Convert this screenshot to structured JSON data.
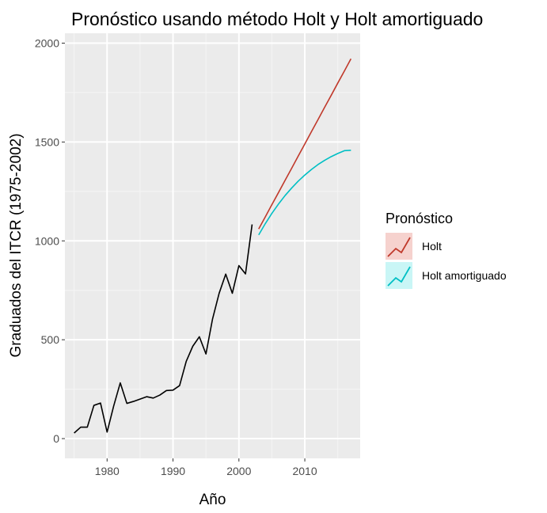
{
  "chart_data": {
    "type": "line",
    "title": "Pronóstico usando método Holt y Holt amortiguado",
    "xlabel": "Año",
    "ylabel": "Graduados del ITCR (1975-2002)",
    "xlim": [
      1973.6,
      2018.4
    ],
    "ylim": [
      -100,
      2050
    ],
    "x_ticks": [
      1980,
      1990,
      2000,
      2010
    ],
    "y_ticks": [
      0,
      500,
      1000,
      1500,
      2000
    ],
    "grid": true,
    "legend": {
      "title": "Pronóstico",
      "position": "right"
    },
    "series": [
      {
        "color": "#000000",
        "x": [
          1975,
          1976,
          1977,
          1978,
          1979,
          1980,
          1981,
          1982,
          1983,
          1984,
          1985,
          1986,
          1987,
          1988,
          1989,
          1990,
          1991,
          1992,
          1993,
          1994,
          1995,
          1996,
          1997,
          1998,
          1999,
          2000,
          2001,
          2002
        ],
        "y": [
          28,
          58,
          58,
          168,
          180,
          33,
          165,
          282,
          178,
          188,
          200,
          212,
          205,
          220,
          243,
          245,
          268,
          390,
          467,
          515,
          428,
          605,
          735,
          832,
          735,
          875,
          833,
          1083
        ]
      },
      {
        "name": "Holt",
        "color": "#C0392B",
        "x": [
          2003,
          2004,
          2005,
          2006,
          2007,
          2008,
          2009,
          2010,
          2011,
          2012,
          2013,
          2014,
          2015,
          2016,
          2017
        ],
        "y": [
          1060,
          1121,
          1183,
          1244,
          1306,
          1367,
          1429,
          1490,
          1552,
          1613,
          1675,
          1736,
          1798,
          1859,
          1921
        ]
      },
      {
        "name": "Holt amortiguado",
        "color": "#00BFC4",
        "x": [
          2003,
          2004,
          2005,
          2006,
          2007,
          2008,
          2009,
          2010,
          2011,
          2012,
          2013,
          2014,
          2015,
          2016,
          2017
        ],
        "y": [
          1030,
          1087,
          1139,
          1186,
          1229,
          1267,
          1302,
          1333,
          1361,
          1386,
          1407,
          1426,
          1442,
          1456,
          1458
        ]
      }
    ]
  }
}
